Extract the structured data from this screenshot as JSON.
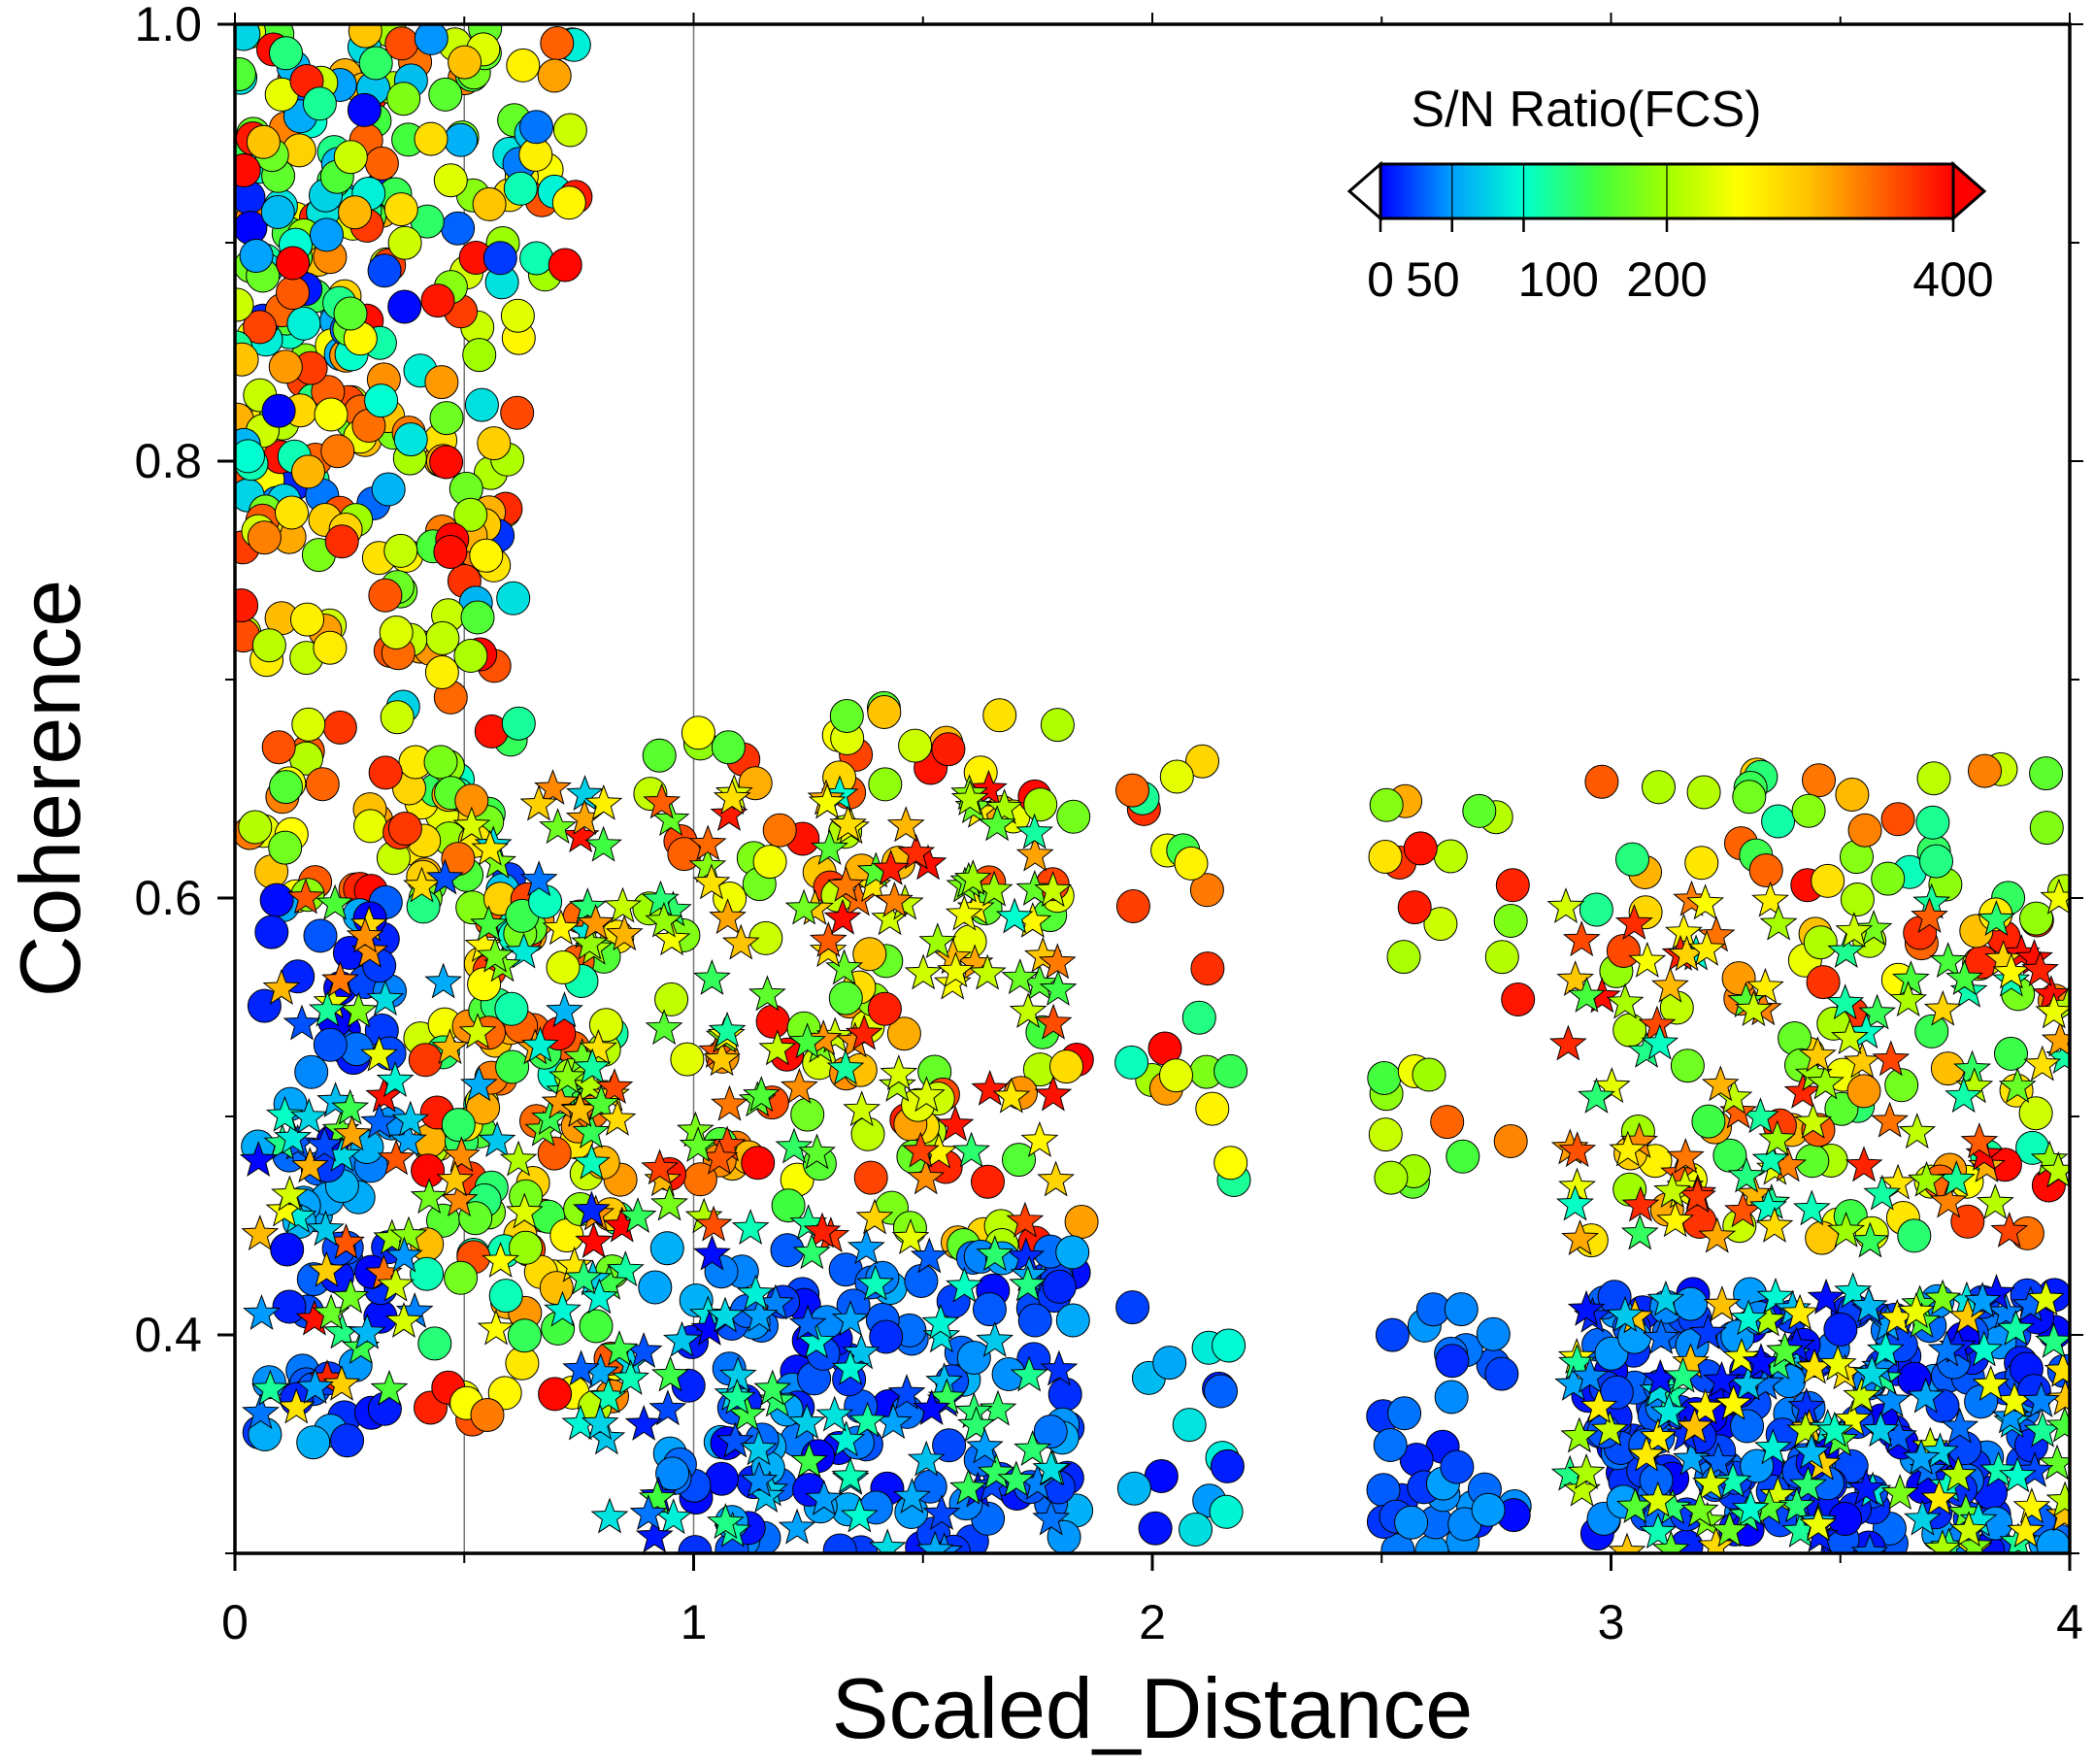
{
  "chart_data": {
    "type": "scatter",
    "xlabel": "Scaled_Distance",
    "ylabel": "Coherence",
    "xlim": [
      0,
      4
    ],
    "ylim": [
      0.3,
      1.0
    ],
    "x_tick_labels": [
      "0",
      "1",
      "2",
      "3",
      "4"
    ],
    "y_tick_labels": [
      "0.4",
      "0.6",
      "0.8",
      "1.0"
    ],
    "reference_lines": {
      "x": [
        0.5,
        1.0
      ]
    },
    "colorbar": {
      "title": "S/N Ratio(FCS)",
      "range": [
        0,
        400
      ],
      "tick_labels": [
        "0",
        "50",
        "100",
        "200",
        "400"
      ],
      "tick_values": [
        0,
        50,
        100,
        200,
        400
      ],
      "colors": [
        "#0000ff",
        "#00a0ff",
        "#00ffd0",
        "#40ff40",
        "#a0ff00",
        "#ffff00",
        "#ffc000",
        "#ff6000",
        "#ff0000"
      ],
      "placement": "top-right"
    },
    "marker_types": [
      "circle",
      "star"
    ],
    "series": [
      {
        "marker": "circle",
        "clusters": [
          {
            "x": [
              0.0,
              0.35
            ],
            "y": [
              0.78,
              1.0
            ],
            "sn": [
              0,
              400
            ],
            "n": 160
          },
          {
            "x": [
              0.35,
              0.62
            ],
            "y": [
              0.6,
              1.0
            ],
            "sn": [
              0,
              400
            ],
            "n": 90
          },
          {
            "x": [
              0.6,
              0.75
            ],
            "y": [
              0.88,
              1.0
            ],
            "sn": [
              0,
              400
            ],
            "n": 20
          },
          {
            "x": [
              0.0,
              0.55
            ],
            "y": [
              0.6,
              0.78
            ],
            "sn": [
              150,
              400
            ],
            "n": 90
          },
          {
            "x": [
              0.05,
              0.35
            ],
            "y": [
              0.35,
              0.6
            ],
            "sn": [
              0,
              60
            ],
            "n": 70
          },
          {
            "x": [
              0.4,
              0.85
            ],
            "y": [
              0.36,
              0.6
            ],
            "sn": [
              100,
              400
            ],
            "n": 120
          },
          {
            "x": [
              0.9,
              1.85
            ],
            "y": [
              0.44,
              0.69
            ],
            "sn": [
              150,
              400
            ],
            "n": 110
          },
          {
            "x": [
              0.9,
              1.85
            ],
            "y": [
              0.3,
              0.44
            ],
            "sn": [
              0,
              60
            ],
            "n": 120
          },
          {
            "x": [
              1.95,
              2.18
            ],
            "y": [
              0.46,
              0.67
            ],
            "sn": [
              100,
              400
            ],
            "n": 22
          },
          {
            "x": [
              1.95,
              2.18
            ],
            "y": [
              0.31,
              0.42
            ],
            "sn": [
              0,
              100
            ],
            "n": 16
          },
          {
            "x": [
              2.5,
              2.8
            ],
            "y": [
              0.45,
              0.65
            ],
            "sn": [
              150,
              400
            ],
            "n": 26
          },
          {
            "x": [
              2.5,
              2.8
            ],
            "y": [
              0.3,
              0.42
            ],
            "sn": [
              0,
              50
            ],
            "n": 36
          },
          {
            "x": [
              2.95,
              4.0
            ],
            "y": [
              0.44,
              0.66
            ],
            "sn": [
              100,
              400
            ],
            "n": 110
          },
          {
            "x": [
              2.95,
              4.0
            ],
            "y": [
              0.3,
              0.42
            ],
            "sn": [
              0,
              50
            ],
            "n": 200
          }
        ]
      },
      {
        "marker": "star",
        "clusters": [
          {
            "x": [
              0.05,
              0.4
            ],
            "y": [
              0.36,
              0.6
            ],
            "sn": [
              0,
              400
            ],
            "n": 60
          },
          {
            "x": [
              0.4,
              0.8
            ],
            "y": [
              0.4,
              0.67
            ],
            "sn": [
              0,
              400
            ],
            "n": 50
          },
          {
            "x": [
              0.75,
              1.8
            ],
            "y": [
              0.44,
              0.65
            ],
            "sn": [
              100,
              400
            ],
            "n": 140
          },
          {
            "x": [
              0.75,
              1.8
            ],
            "y": [
              0.3,
              0.44
            ],
            "sn": [
              0,
              150
            ],
            "n": 100
          },
          {
            "x": [
              2.9,
              4.0
            ],
            "y": [
              0.44,
              0.6
            ],
            "sn": [
              100,
              400
            ],
            "n": 120
          },
          {
            "x": [
              2.9,
              4.0
            ],
            "y": [
              0.3,
              0.42
            ],
            "sn": [
              0,
              300
            ],
            "n": 150
          }
        ]
      }
    ]
  }
}
